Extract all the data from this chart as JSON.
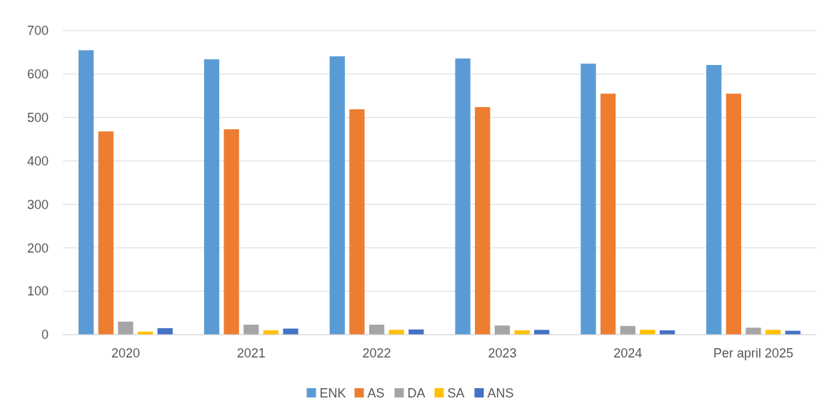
{
  "chart_data": {
    "type": "bar",
    "categories": [
      "2020",
      "2021",
      "2022",
      "2023",
      "2024",
      "Per april 2025"
    ],
    "series": [
      {
        "name": "ENK",
        "color": "#5b9bd5",
        "values": [
          655,
          634,
          641,
          636,
          624,
          621
        ]
      },
      {
        "name": "AS",
        "color": "#ed7d31",
        "values": [
          468,
          473,
          519,
          524,
          555,
          555
        ]
      },
      {
        "name": "DA",
        "color": "#a5a5a5",
        "values": [
          30,
          23,
          23,
          21,
          20,
          16
        ]
      },
      {
        "name": "SA",
        "color": "#ffc000",
        "values": [
          7,
          10,
          11,
          10,
          11,
          11
        ]
      },
      {
        "name": "ANS",
        "color": "#4472c4",
        "values": [
          15,
          14,
          12,
          11,
          10,
          9
        ]
      }
    ],
    "ylim": [
      0,
      700
    ],
    "yticks": [
      0,
      100,
      200,
      300,
      400,
      500,
      600,
      700
    ],
    "grid": "y",
    "legend": "bottom"
  }
}
